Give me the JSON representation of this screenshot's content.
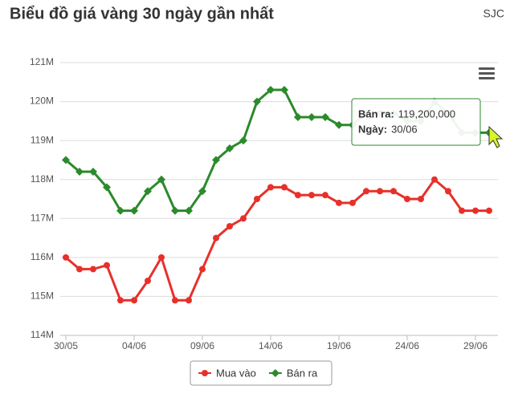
{
  "header": {
    "title": "Biểu đồ giá vàng 30 ngày gần nhất",
    "source": "SJC"
  },
  "chart_data": {
    "type": "line",
    "categories": [
      "30/05",
      null,
      null,
      null,
      null,
      "04/06",
      null,
      null,
      null,
      null,
      "09/06",
      null,
      null,
      null,
      null,
      "14/06",
      null,
      null,
      null,
      null,
      "19/06",
      null,
      null,
      null,
      null,
      "24/06",
      null,
      null,
      null,
      null,
      "29/06",
      null
    ],
    "series": [
      {
        "name": "Mua vào",
        "color": "#e8302a",
        "values": [
          116.0,
          115.7,
          115.7,
          115.8,
          114.9,
          114.9,
          115.4,
          116.0,
          114.9,
          114.9,
          115.7,
          116.5,
          116.8,
          117.0,
          117.5,
          117.8,
          117.8,
          117.6,
          117.6,
          117.6,
          117.4,
          117.4,
          117.7,
          117.7,
          117.7,
          117.5,
          117.5,
          118.0,
          117.7,
          117.2,
          117.2,
          117.2
        ]
      },
      {
        "name": "Bán ra",
        "color": "#2b8a2b",
        "values": [
          118.5,
          118.2,
          118.2,
          117.8,
          117.2,
          117.2,
          117.7,
          118.0,
          117.2,
          117.2,
          117.7,
          118.5,
          118.8,
          119.0,
          120.0,
          120.3,
          120.3,
          119.6,
          119.6,
          119.6,
          119.4,
          119.4,
          119.7,
          119.7,
          119.7,
          119.5,
          119.5,
          120.0,
          119.7,
          119.2,
          119.2,
          119.2
        ]
      }
    ],
    "ylim": [
      114,
      121
    ],
    "yticks": [
      {
        "value": 114,
        "label": "114M"
      },
      {
        "value": 115,
        "label": "115M"
      },
      {
        "value": 116,
        "label": "116M"
      },
      {
        "value": 117,
        "label": "117M"
      },
      {
        "value": 118,
        "label": "118M"
      },
      {
        "value": 119,
        "label": "119M"
      },
      {
        "value": 120,
        "label": "120M"
      },
      {
        "value": 121,
        "label": "121M"
      }
    ],
    "grid": true,
    "tooltip": {
      "lines": [
        {
          "label": "Bán ra:",
          "value": "119,200,000"
        },
        {
          "label": "Ngày:",
          "value": "30/06"
        }
      ]
    }
  }
}
